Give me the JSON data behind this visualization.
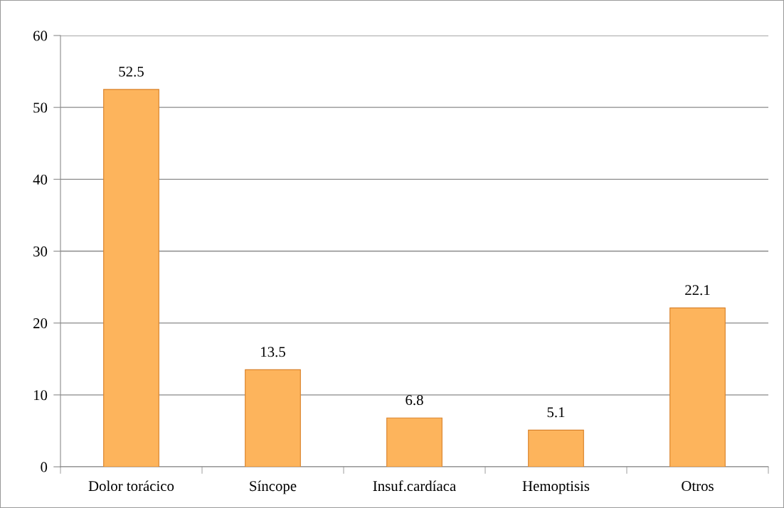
{
  "chart_data": {
    "type": "bar",
    "categories": [
      "Dolor torácico",
      "Síncope",
      "Insuf.cardíaca",
      "Hemoptisis",
      "Otros"
    ],
    "values": [
      52.5,
      13.5,
      6.8,
      5.1,
      22.1
    ],
    "color": "#fdb45c",
    "ylim": [
      0,
      60
    ],
    "yticks": [
      0,
      10,
      20,
      30,
      40,
      50,
      60
    ],
    "grid": "y",
    "data_labels": true
  }
}
